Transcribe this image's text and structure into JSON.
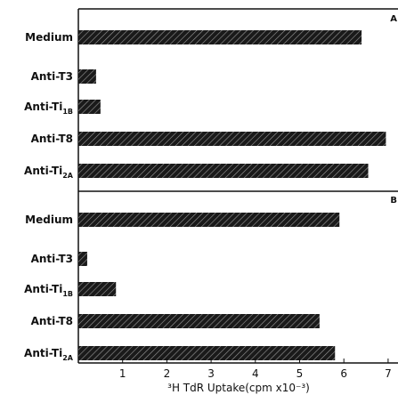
{
  "chart_data": {
    "type": "bar",
    "orientation": "horizontal",
    "xlabel": "³H TdR Uptake(cpm x10⁻³)",
    "xlim": [
      0,
      7
    ],
    "xticks": [
      1,
      2,
      3,
      4,
      5,
      6,
      7
    ],
    "grid": false,
    "panels": [
      {
        "label": "A",
        "categories": [
          "Medium",
          "Anti-T3",
          "Anti-Ti1B",
          "Anti-T8",
          "Anti-Ti2A"
        ],
        "category_display": [
          {
            "main": "Medium",
            "sub": ""
          },
          {
            "main": "Anti-T3",
            "sub": ""
          },
          {
            "main": "Anti-Ti",
            "sub": "1B"
          },
          {
            "main": "Anti-T8",
            "sub": ""
          },
          {
            "main": "Anti-Ti",
            "sub": "2A"
          }
        ],
        "values": [
          6.4,
          0.4,
          0.5,
          6.95,
          6.55
        ]
      },
      {
        "label": "B",
        "categories": [
          "Medium",
          "Anti-T3",
          "Anti-Ti1B",
          "Anti-T8",
          "Anti-Ti2A"
        ],
        "category_display": [
          {
            "main": "Medium",
            "sub": ""
          },
          {
            "main": "Anti-T3",
            "sub": ""
          },
          {
            "main": "Anti-Ti",
            "sub": "1B"
          },
          {
            "main": "Anti-T8",
            "sub": ""
          },
          {
            "main": "Anti-Ti",
            "sub": "2A"
          }
        ],
        "values": [
          5.9,
          0.2,
          0.85,
          5.45,
          5.8
        ]
      }
    ]
  },
  "colors": {
    "bar": "#1a1a1a",
    "hatch": "#9a9a9a",
    "axis": "#111111"
  }
}
